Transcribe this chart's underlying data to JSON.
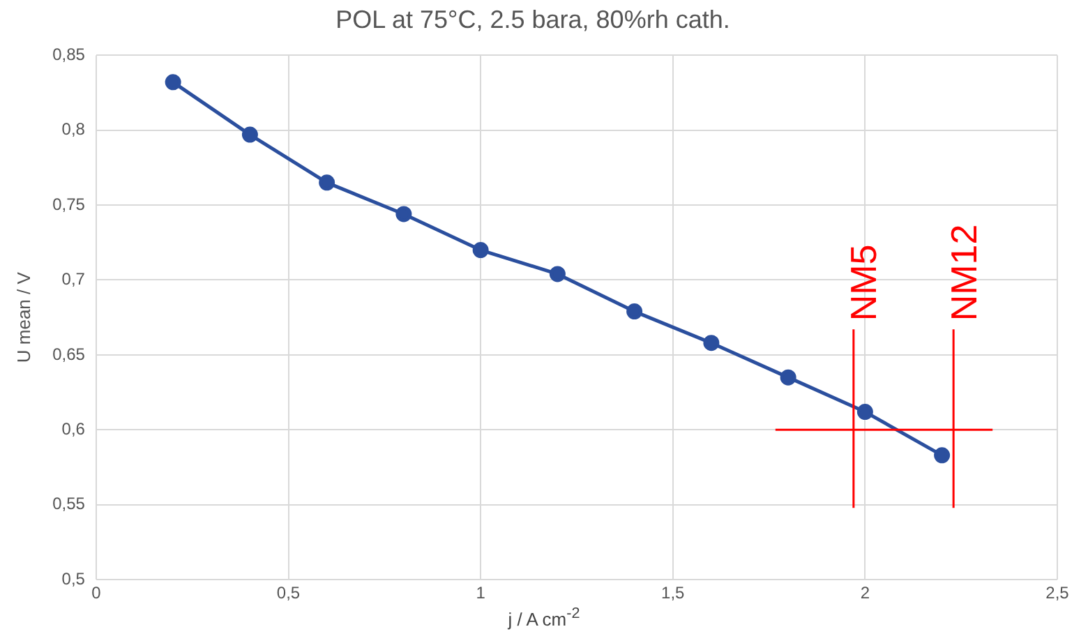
{
  "chart_data": {
    "type": "line",
    "title": "POL at 75°C, 2.5 bara, 80%rh cath.",
    "xlabel": "j / A cm$^{-2}$",
    "ylabel": "U mean / V",
    "x": [
      0.2,
      0.4,
      0.6,
      0.8,
      1.0,
      1.2,
      1.4,
      1.6,
      1.8,
      2.0,
      2.2
    ],
    "series": [
      {
        "color": "#2b4f9e",
        "values": [
          0.832,
          0.797,
          0.765,
          0.744,
          0.72,
          0.704,
          0.679,
          0.658,
          0.635,
          0.612,
          0.583
        ]
      }
    ],
    "xlim": [
      0,
      2.5
    ],
    "xticks": [
      {
        "value": 0,
        "label": "0"
      },
      {
        "value": 0.5,
        "label": "0,5"
      },
      {
        "value": 1,
        "label": "1"
      },
      {
        "value": 1.5,
        "label": "1,5"
      },
      {
        "value": 2,
        "label": "2"
      },
      {
        "value": 2.5,
        "label": "2,5"
      }
    ],
    "ylim": [
      0.5,
      0.85
    ],
    "yticks": [
      {
        "value": 0.5,
        "label": "0,5"
      },
      {
        "value": 0.55,
        "label": "0,55"
      },
      {
        "value": 0.6,
        "label": "0,6"
      },
      {
        "value": 0.65,
        "label": "0,65"
      },
      {
        "value": 0.7,
        "label": "0,7"
      },
      {
        "value": 0.75,
        "label": "0,75"
      },
      {
        "value": 0.8,
        "label": "0,8"
      },
      {
        "value": 0.85,
        "label": "0,85"
      }
    ],
    "ref_lines": [
      {
        "axis": "x",
        "value": 1.97,
        "label": "NM5",
        "color": "#ff0000"
      },
      {
        "axis": "x",
        "value": 2.23,
        "label": "NM12",
        "color": "#ff0000"
      },
      {
        "axis": "y",
        "value": 0.6,
        "color": "#ff0000"
      }
    ],
    "grid": true,
    "legend": false,
    "marker": "circle",
    "line_style": "solid"
  }
}
